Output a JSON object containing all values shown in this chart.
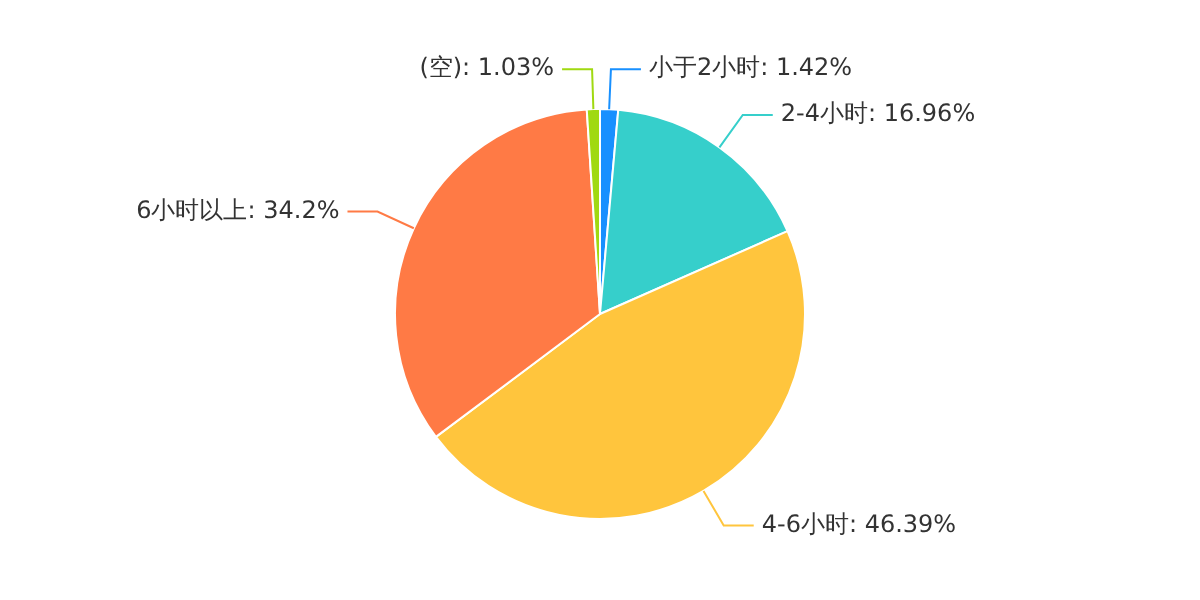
{
  "chart_data": {
    "type": "pie",
    "categories": [
      "小于2小时",
      "2-4小时",
      "4-6小时",
      "6小时以上",
      "(空)"
    ],
    "values": [
      1.42,
      16.96,
      46.39,
      34.2,
      1.03
    ],
    "colors": [
      "#1890ff",
      "#36cfcb",
      "#ffc53d",
      "#ff7a45",
      "#a0d911"
    ],
    "value_labels": [
      "1.42%",
      "16.96%",
      "46.39%",
      "34.2%",
      "1.03%"
    ],
    "legend": false
  }
}
